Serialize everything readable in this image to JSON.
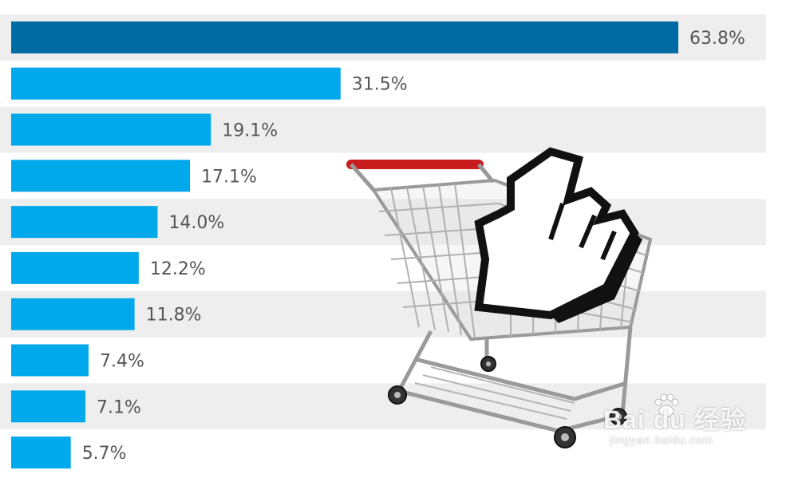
{
  "chart_data": {
    "type": "bar",
    "orientation": "horizontal",
    "values": [
      63.8,
      31.5,
      19.1,
      17.1,
      14.0,
      12.2,
      11.8,
      7.4,
      7.1,
      5.7
    ],
    "data_labels": [
      "63.8%",
      "31.5%",
      "19.1%",
      "17.1%",
      "14.0%",
      "12.2%",
      "11.8%",
      "7.4%",
      "7.1%",
      "5.7%"
    ],
    "xlim": [
      0,
      70
    ],
    "highlight_index": 0,
    "grid": false,
    "row_banding": true,
    "colors": {
      "highlight": "#006aa3",
      "bar": "#00a9ec",
      "band": "#eeeeee",
      "label": "#555555"
    }
  },
  "decoration": {
    "illustration": "shopping-cart-with-pointer-hand",
    "watermark": {
      "brand": "Bai du 经验",
      "url": "jingyan.baidu.com"
    }
  }
}
